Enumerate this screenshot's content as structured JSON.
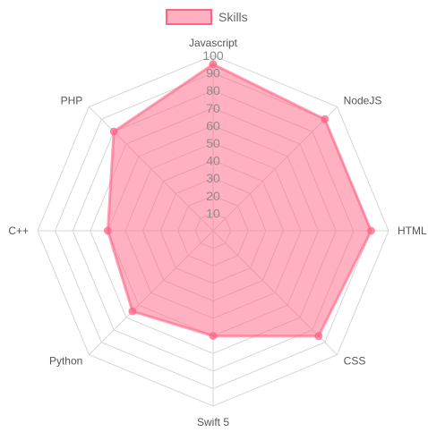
{
  "chart_data": {
    "type": "radar",
    "categories": [
      "Javascript",
      "NodeJS",
      "HTML",
      "CSS",
      "Swift 5",
      "Python",
      "C++",
      "PHP"
    ],
    "series": [
      {
        "name": "Skills",
        "values": [
          95,
          90,
          90,
          85,
          60,
          65,
          60,
          80
        ],
        "fill_color": "#ff6384",
        "fill_opacity": 0.5,
        "stroke_color": "#ff6384"
      }
    ],
    "rlim": [
      0,
      100
    ],
    "r_ticks": [
      10,
      20,
      30,
      40,
      50,
      60,
      70,
      80,
      90,
      100
    ],
    "grid": true,
    "grid_color": "#d6d6d6",
    "legend_position": "top-center"
  }
}
